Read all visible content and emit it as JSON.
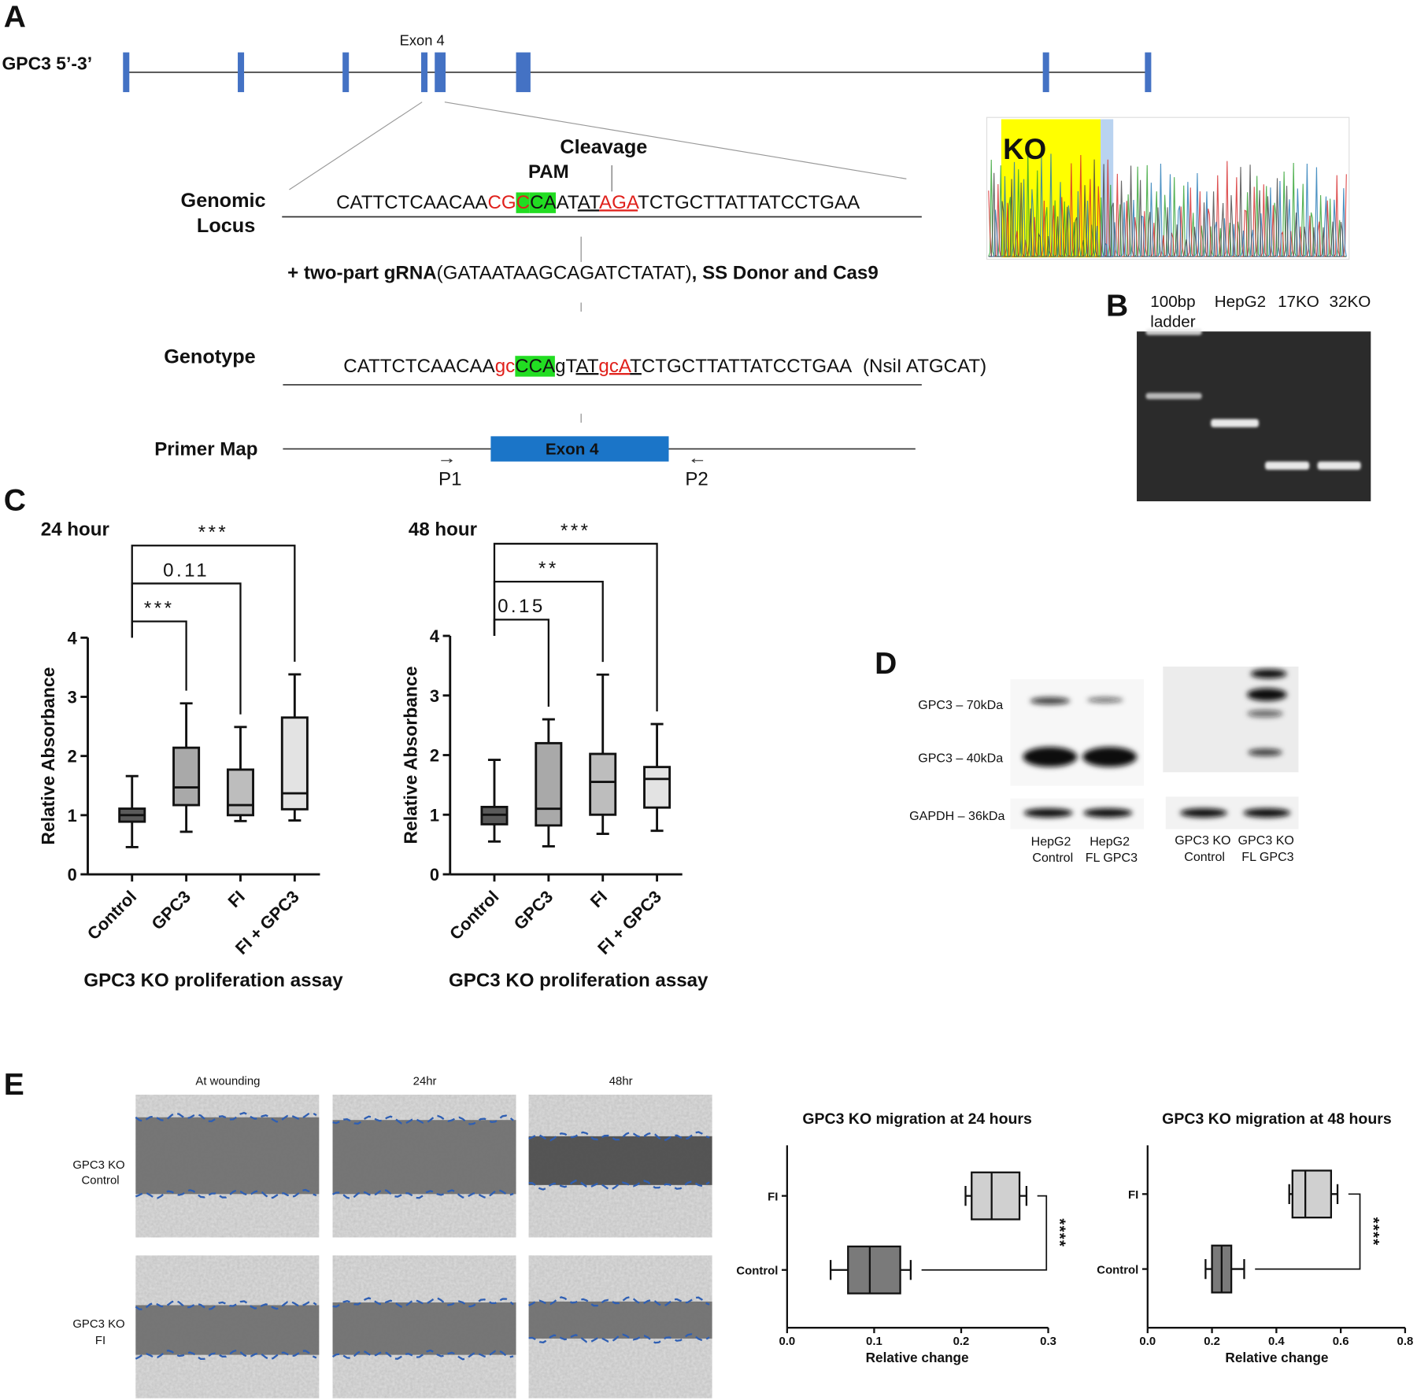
{
  "panel_labels": [
    "A",
    "B",
    "C",
    "D",
    "E"
  ],
  "gene_diagram": {
    "gene_label": "GPC3 5’-3’",
    "exon_label": "Exon 4",
    "cleavage_label": "Cleavage",
    "pam_label": "PAM",
    "genomic_locus": {
      "label": [
        "Genomic",
        "Locus"
      ],
      "sequence": [
        {
          "text": "CATTCTCAACAA"
        },
        {
          "text": "CG",
          "style": "red"
        },
        {
          "text": "C",
          "style": "red highlight"
        },
        {
          "text": "CA",
          "style": "highlight"
        },
        {
          "text": "AT"
        },
        {
          "text": "AT",
          "style": "underline"
        },
        {
          "text": "AGA",
          "style": "red underline"
        },
        {
          "text": "TCTGCTTATTATCCTGAA"
        }
      ]
    },
    "reagents": [
      {
        "text": "+ two-part gRNA",
        "style": "bold"
      },
      {
        "text": "(GATAATAAGCAGATCTATAT)"
      },
      {
        "text": ", SS Donor and Cas9",
        "style": "bold"
      }
    ],
    "genotype": {
      "label": "Genotype",
      "sequence": [
        {
          "text": "CATTCTCAACAA"
        },
        {
          "text": "gc",
          "style": "red"
        },
        {
          "text": "CCA",
          "style": "highlight"
        },
        {
          "text": "gT"
        },
        {
          "text": "AT",
          "style": "underline"
        },
        {
          "text": "gcA",
          "style": "red underline"
        },
        {
          "text": "T",
          "style": "underline"
        },
        {
          "text": "CTGCTTATTATCCTGAA"
        }
      ],
      "note": "(NsiI ATGCAT)"
    },
    "primer_map": {
      "label": "Primer Map",
      "exon_label": "Exon 4",
      "primers": [
        "P1",
        "P2"
      ]
    },
    "chromatogram_label": "KO"
  },
  "gel": {
    "lanes": [
      [
        "100bp",
        "ladder"
      ],
      [
        "HepG2"
      ],
      [
        "17KO"
      ],
      [
        "32KO"
      ]
    ]
  },
  "western_blot": {
    "bands": [
      "GPC3 – 70kDa",
      "GPC3 – 40kDa",
      "GAPDH – 36kDa"
    ],
    "lanes": [
      [
        "HepG2",
        "Control"
      ],
      [
        "HepG2",
        "FL GPC3"
      ],
      [
        "GPC3 KO",
        "Control"
      ],
      [
        "GPC3 KO",
        "FL GPC3"
      ]
    ]
  },
  "wound_healing": {
    "timepoints": [
      "At wounding",
      "24hr",
      "48hr"
    ],
    "conditions": [
      [
        "GPC3 KO",
        "Control"
      ],
      [
        "GPC3 KO",
        "FI"
      ]
    ]
  },
  "chart_data": [
    {
      "type": "box",
      "orientation": "vertical",
      "title": "24 hour",
      "ylabel": "Relative Absorbance",
      "xlabel": "GPC3 KO proliferation assay",
      "categories": [
        "Control",
        "GPC3",
        "FI",
        "FI + GPC3"
      ],
      "min": [
        0.46,
        0.72,
        0.9,
        0.91
      ],
      "q1": [
        0.89,
        1.17,
        1.0,
        1.1
      ],
      "median": [
        1.0,
        1.47,
        1.17,
        1.37
      ],
      "q3": [
        1.11,
        2.14,
        1.77,
        2.65
      ],
      "max": [
        1.66,
        2.89,
        2.49,
        3.38
      ],
      "colors": [
        "#5a5a5a",
        "#a9a9a9",
        "#bdbdbd",
        "#e3e3e3"
      ],
      "ylim": [
        0,
        4
      ],
      "yticks": [
        0,
        1,
        2,
        3,
        4
      ],
      "annotations": [
        "***",
        "0.11",
        "***"
      ]
    },
    {
      "type": "box",
      "orientation": "vertical",
      "title": "48 hour",
      "ylabel": "Relative Absorbance",
      "xlabel": "GPC3 KO proliferation assay",
      "categories": [
        "Control",
        "GPC3",
        "FI",
        "FI + GPC3"
      ],
      "min": [
        0.55,
        0.47,
        0.68,
        0.73
      ],
      "q1": [
        0.84,
        0.82,
        1.0,
        1.12
      ],
      "median": [
        1.0,
        1.1,
        1.55,
        1.6
      ],
      "q3": [
        1.13,
        2.2,
        2.02,
        1.8
      ],
      "max": [
        1.92,
        2.6,
        3.35,
        2.52
      ],
      "colors": [
        "#5a5a5a",
        "#a9a9a9",
        "#bdbdbd",
        "#e3e3e3"
      ],
      "ylim": [
        0,
        4
      ],
      "yticks": [
        0,
        1,
        2,
        3,
        4
      ],
      "annotations": [
        "0.15",
        "**",
        "***"
      ]
    },
    {
      "type": "box",
      "orientation": "horizontal",
      "title": "GPC3 KO migration at 24 hours",
      "xlabel": "Relative change",
      "categories": [
        "FI",
        "Control"
      ],
      "min": [
        0.205,
        0.05
      ],
      "q1": [
        0.212,
        0.07
      ],
      "median": [
        0.235,
        0.095
      ],
      "q3": [
        0.267,
        0.13
      ],
      "max": [
        0.275,
        0.142
      ],
      "colors": [
        "#d0d0d0",
        "#7a7a7a"
      ],
      "xlim": [
        0,
        0.3
      ],
      "xticks": [
        {
          "value": 0,
          "label": "0.0"
        },
        0.1,
        0.2,
        0.3
      ],
      "annotations": [
        "****"
      ]
    },
    {
      "type": "box",
      "orientation": "horizontal",
      "title": "GPC3 KO migration at 48 hours",
      "xlabel": "Relative change",
      "categories": [
        "FI",
        "Control"
      ],
      "min": [
        0.44,
        0.18
      ],
      "q1": [
        0.45,
        0.2
      ],
      "median": [
        0.49,
        0.23
      ],
      "q3": [
        0.57,
        0.26
      ],
      "max": [
        0.59,
        0.3
      ],
      "colors": [
        "#d0d0d0",
        "#7a7a7a"
      ],
      "xlim": [
        0,
        0.8
      ],
      "xticks": [
        {
          "value": 0,
          "label": "0.0"
        },
        0.2,
        0.4,
        0.6,
        0.8
      ],
      "annotations": [
        "****"
      ]
    }
  ]
}
